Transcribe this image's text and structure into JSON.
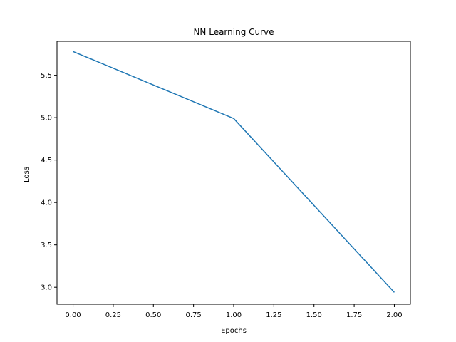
{
  "chart_data": {
    "type": "line",
    "title": "NN Learning Curve",
    "xlabel": "Epochs",
    "ylabel": "Loss",
    "xlim": [
      -0.1,
      2.1
    ],
    "ylim": [
      2.8,
      5.9
    ],
    "x_ticks": [
      0.0,
      0.25,
      0.5,
      0.75,
      1.0,
      1.25,
      1.5,
      1.75,
      2.0
    ],
    "x_tick_labels": [
      "0.00",
      "0.25",
      "0.50",
      "0.75",
      "1.00",
      "1.25",
      "1.50",
      "1.75",
      "2.00"
    ],
    "y_ticks": [
      3.0,
      3.5,
      4.0,
      4.5,
      5.0,
      5.5
    ],
    "y_tick_labels": [
      "3.0",
      "3.5",
      "4.0",
      "4.5",
      "5.0",
      "5.5"
    ],
    "grid": false,
    "series": [
      {
        "x": [
          0,
          1,
          2
        ],
        "values": [
          5.78,
          4.99,
          2.94
        ],
        "color": "#1f77b4"
      }
    ]
  }
}
